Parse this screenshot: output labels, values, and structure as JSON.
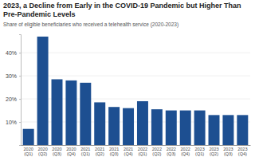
{
  "chart_data": {
    "type": "bar",
    "title": "2023, a Decline from Early in the COVID-19 Pandemic but Higher Than Pre-Pandemic Levels",
    "subtitle": "Share of eligible beneficiaries who received a telehealth service (2020-2023)",
    "categories": [
      "2020 (Q1)",
      "2020 (Q2)",
      "2020 (Q3)",
      "2020 (Q4)",
      "2021 (Q1)",
      "2021 (Q2)",
      "2021 (Q3)",
      "2021 (Q4)",
      "2022 (Q1)",
      "2022 (Q2)",
      "2022 (Q3)",
      "2022 (Q4)",
      "2023 (Q1)",
      "2023 (Q2)",
      "2023 (Q3)",
      "2023 (Q4)"
    ],
    "values": [
      7,
      47,
      28.5,
      28,
      27,
      18.5,
      16.5,
      16,
      19,
      15.5,
      15,
      15,
      15,
      13,
      13,
      13
    ],
    "color": "#1d4f91",
    "ylim": [
      0,
      48
    ],
    "yticks": [
      {
        "value": 10,
        "label": "10%"
      },
      {
        "value": 20,
        "label": "20%"
      },
      {
        "value": 30,
        "label": "30%"
      },
      {
        "value": 40,
        "label": "40%"
      }
    ],
    "grid": true
  }
}
